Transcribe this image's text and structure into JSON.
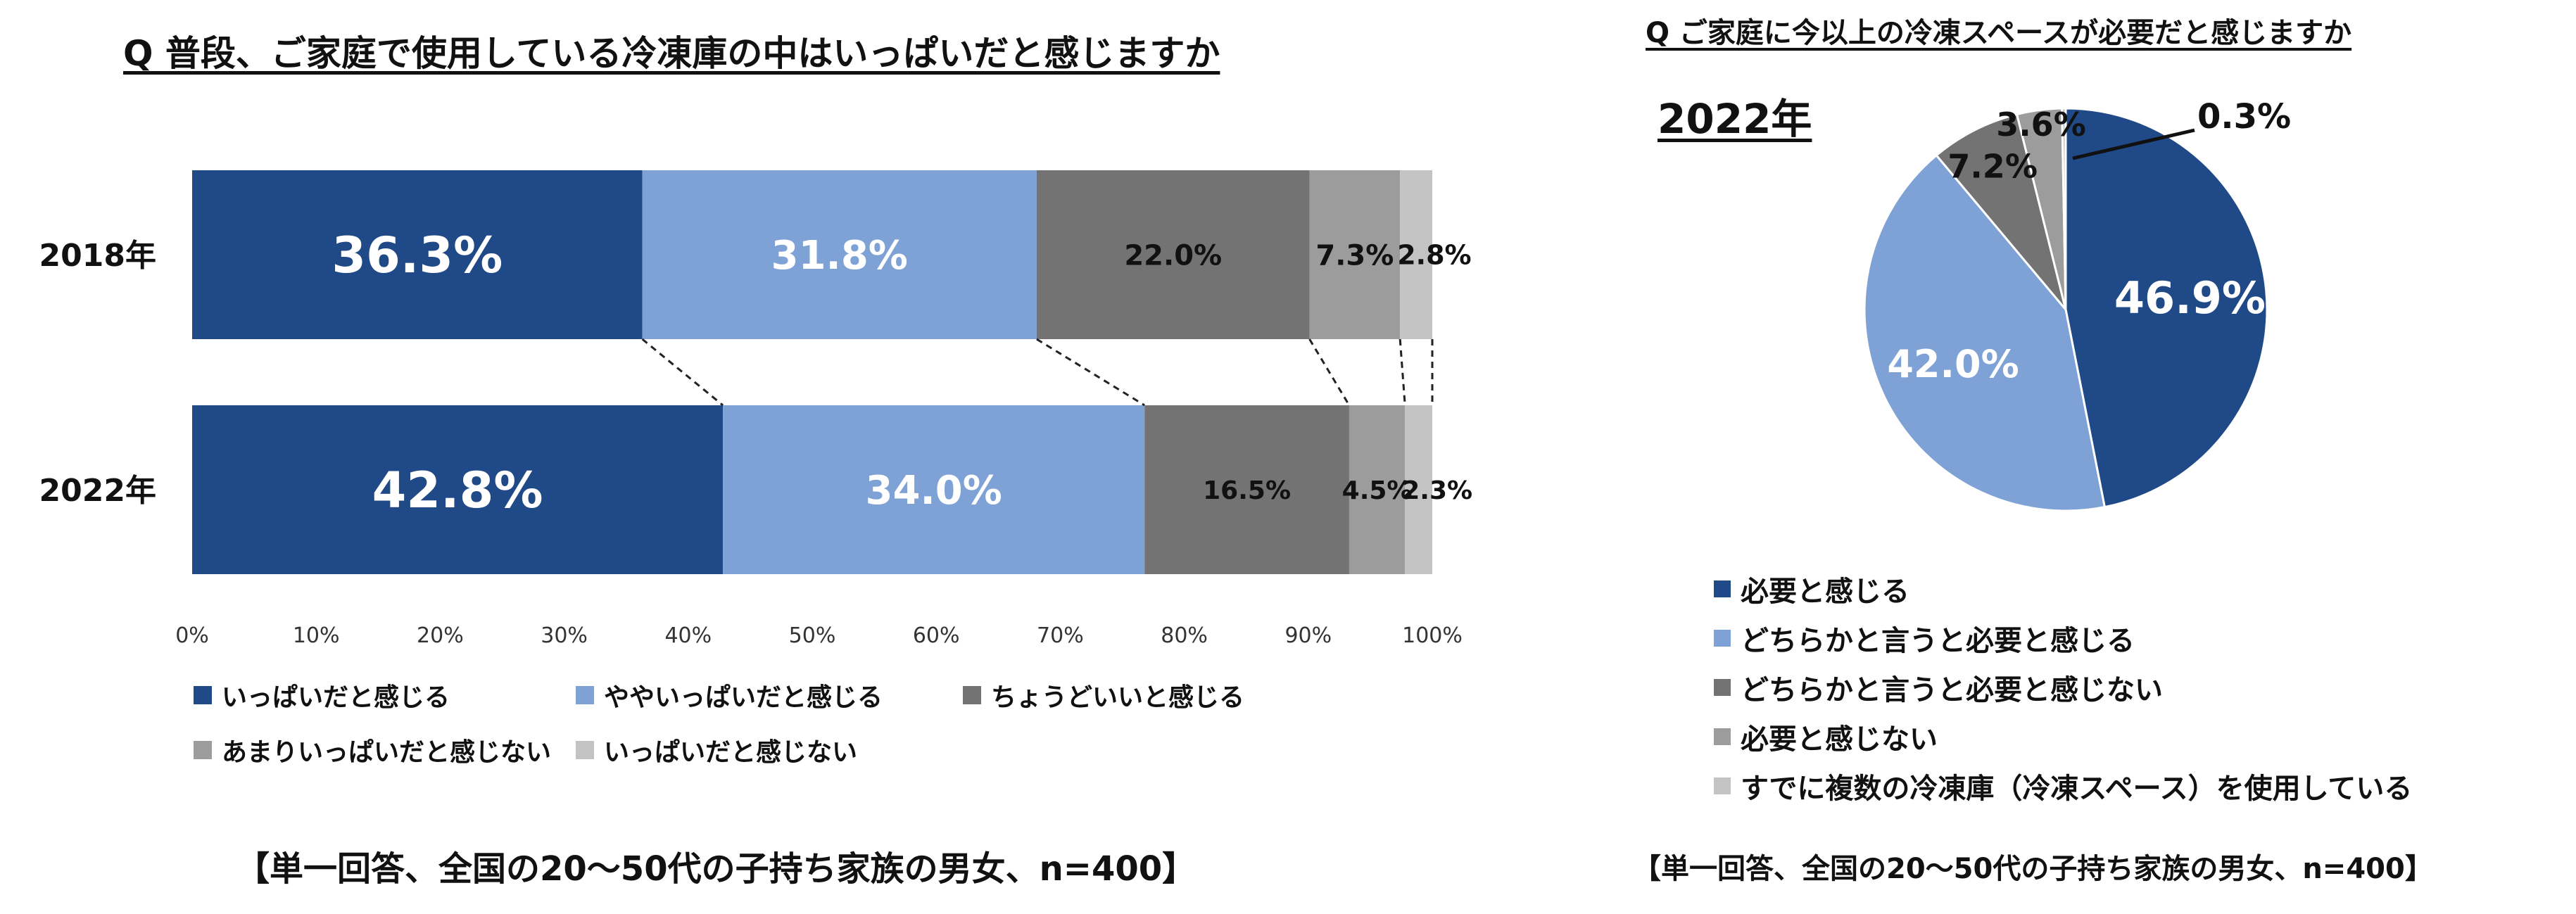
{
  "colors": {
    "dark_blue": "#204a87",
    "light_blue": "#7fa2d6",
    "dark_gray": "#737373",
    "mid_gray": "#9c9c9c",
    "light_gray": "#c3c3c3"
  },
  "bar_panel": {
    "title": "Q 普段、ご家庭で使用している冷凍庫の中はいっぱいだと感じますか",
    "note": "【単一回答、全国の20～50代の子持ち家族の男女、n=400】"
  },
  "pie_panel": {
    "title": "Q ご家庭に今以上の冷凍スペースが必要だと感じますか",
    "year_label": "2022年",
    "note": "【単一回答、全国の20～50代の子持ち家族の男女、n=400】"
  },
  "chart_data": [
    {
      "type": "bar",
      "orientation": "horizontal-stacked-100",
      "title": "Q 普段、ご家庭で使用している冷凍庫の中はいっぱいだと感じますか",
      "categories": [
        "2018年",
        "2022年"
      ],
      "x_ticks": [
        "0%",
        "10%",
        "20%",
        "30%",
        "40%",
        "50%",
        "60%",
        "70%",
        "80%",
        "90%",
        "100%"
      ],
      "xlim": [
        0,
        100
      ],
      "legend_position": "bottom",
      "series": [
        {
          "name": "いっぱいだと感じる",
          "values": [
            36.3,
            42.8
          ],
          "labels": [
            "36.3%",
            "42.8%"
          ]
        },
        {
          "name": "ややいっぱいだと感じる",
          "values": [
            31.8,
            34.0
          ],
          "labels": [
            "31.8%",
            "34.0%"
          ]
        },
        {
          "name": "ちょうどいいと感じる",
          "values": [
            22.0,
            16.5
          ],
          "labels": [
            "22.0%",
            "16.5%"
          ]
        },
        {
          "name": "あまりいっぱいだと感じない",
          "values": [
            7.3,
            4.5
          ],
          "labels": [
            "7.3%",
            "4.5%"
          ]
        },
        {
          "name": "いっぱいだと感じない",
          "values": [
            2.8,
            2.3
          ],
          "labels": [
            "2.8%",
            "2.3%"
          ]
        }
      ]
    },
    {
      "type": "pie",
      "title": "Q ご家庭に今以上の冷凍スペースが必要だと感じますか",
      "subtitle": "2022年",
      "legend_position": "bottom",
      "slices": [
        {
          "name": "必要と感じる",
          "value": 46.9,
          "label": "46.9%"
        },
        {
          "name": "どちらかと言うと必要と感じる",
          "value": 42.0,
          "label": "42.0%"
        },
        {
          "name": "どちらかと言うと必要と感じない",
          "value": 7.2,
          "label": "7.2%"
        },
        {
          "name": "必要と感じない",
          "value": 3.6,
          "label": "3.6%"
        },
        {
          "name": "すでに複数の冷凍庫（冷凍スペース）を使用している",
          "value": 0.3,
          "label": "0.3%"
        }
      ]
    }
  ]
}
